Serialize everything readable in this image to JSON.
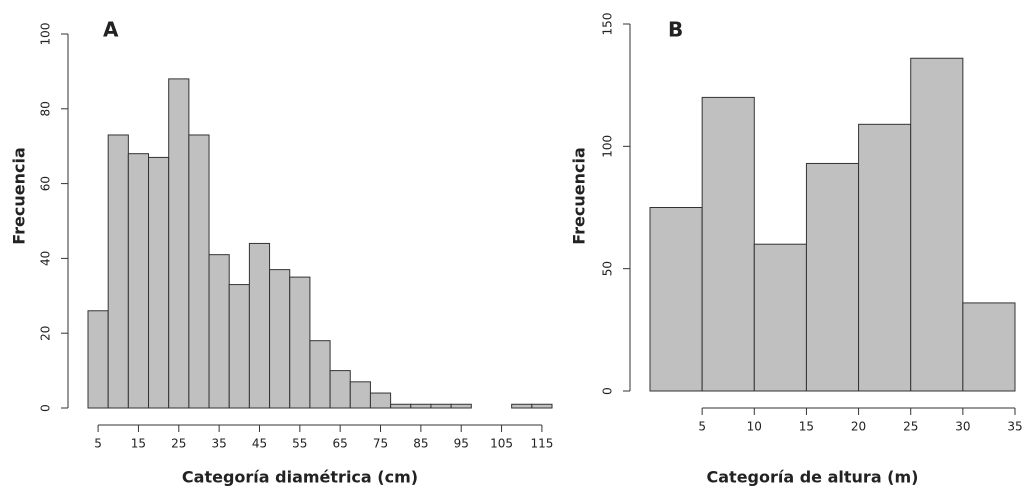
{
  "chart_data": [
    {
      "type": "histogram",
      "title": "A",
      "x_label": "Categoría diamétrica (cm)",
      "y_label": "Frecuencia",
      "bins": [
        2.5,
        7.5,
        12.5,
        17.5,
        22.5,
        27.5,
        32.5,
        37.5,
        42.5,
        47.5,
        52.5,
        57.5,
        62.5,
        67.5,
        72.5,
        77.5,
        82.5,
        87.5,
        92.5,
        97.5,
        102.5,
        107.5,
        112.5,
        117.5
      ],
      "values": [
        26,
        73,
        68,
        67,
        88,
        73,
        41,
        33,
        44,
        37,
        35,
        18,
        10,
        7,
        4,
        1,
        1,
        1,
        1,
        0,
        0,
        1,
        1
      ],
      "color": "#c0c0c0",
      "xlim": [
        2.5,
        117.5
      ],
      "xticks": [
        5,
        15,
        25,
        35,
        45,
        55,
        65,
        75,
        85,
        95,
        105,
        115
      ],
      "ylim": [
        0,
        100
      ],
      "yticks": [
        0,
        20,
        40,
        60,
        80,
        100
      ]
    },
    {
      "type": "histogram",
      "title": "B",
      "x_label": "Categoría de altura (m)",
      "y_label": "Frecuencia",
      "bins": [
        0,
        5,
        10,
        15,
        20,
        25,
        30,
        35
      ],
      "values": [
        75,
        120,
        60,
        93,
        109,
        136,
        36
      ],
      "color": "#c0c0c0",
      "xlim": [
        0,
        35
      ],
      "xticks": [
        5,
        10,
        15,
        20,
        25,
        30,
        35
      ],
      "ylim": [
        0,
        150
      ],
      "yticks": [
        0,
        50,
        100,
        150
      ]
    }
  ]
}
